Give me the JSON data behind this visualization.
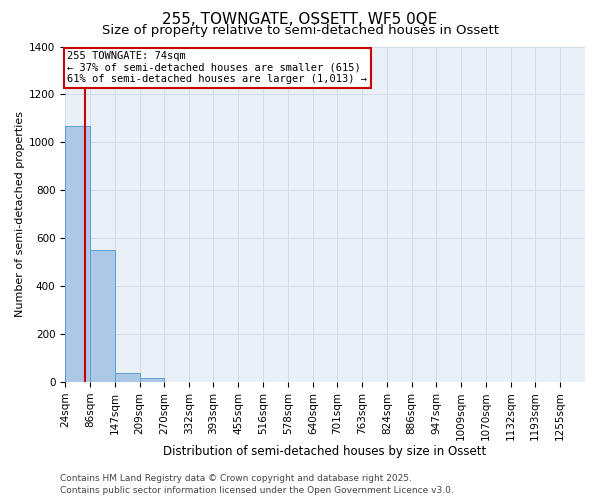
{
  "title": "255, TOWNGATE, OSSETT, WF5 0QE",
  "subtitle": "Size of property relative to semi-detached houses in Ossett",
  "xlabel": "Distribution of semi-detached houses by size in Ossett",
  "ylabel": "Number of semi-detached properties",
  "bins": [
    24,
    86,
    147,
    209,
    270,
    332,
    393,
    455,
    516,
    578,
    640,
    701,
    763,
    824,
    886,
    947,
    1009,
    1070,
    1132,
    1193,
    1255,
    1317
  ],
  "bin_labels": [
    "24sqm",
    "86sqm",
    "147sqm",
    "209sqm",
    "270sqm",
    "332sqm",
    "393sqm",
    "455sqm",
    "516sqm",
    "578sqm",
    "640sqm",
    "701sqm",
    "763sqm",
    "824sqm",
    "886sqm",
    "947sqm",
    "1009sqm",
    "1070sqm",
    "1132sqm",
    "1193sqm",
    "1255sqm"
  ],
  "values": [
    1070,
    550,
    35,
    15,
    0,
    0,
    0,
    0,
    0,
    0,
    0,
    0,
    0,
    0,
    0,
    0,
    0,
    0,
    0,
    0,
    0
  ],
  "bar_color": "#adc8e6",
  "bar_edge_color": "#5a9fd4",
  "grid_color": "#d0dce8",
  "bg_color": "#eaf0f8",
  "property_size": 74,
  "red_line_color": "#cc0000",
  "annotation_line1": "255 TOWNGATE: 74sqm",
  "annotation_line2": "← 37% of semi-detached houses are smaller (615)",
  "annotation_line3": "61% of semi-detached houses are larger (1,013) →",
  "annotation_color": "#cc0000",
  "ylim": [
    0,
    1400
  ],
  "yticks": [
    0,
    200,
    400,
    600,
    800,
    1000,
    1200,
    1400
  ],
  "footer_text": "Contains HM Land Registry data © Crown copyright and database right 2025.\nContains public sector information licensed under the Open Government Licence v3.0.",
  "title_fontsize": 11,
  "subtitle_fontsize": 9.5,
  "xlabel_fontsize": 8.5,
  "ylabel_fontsize": 8,
  "tick_fontsize": 7.5,
  "annotation_fontsize": 7.5,
  "footer_fontsize": 6.5
}
